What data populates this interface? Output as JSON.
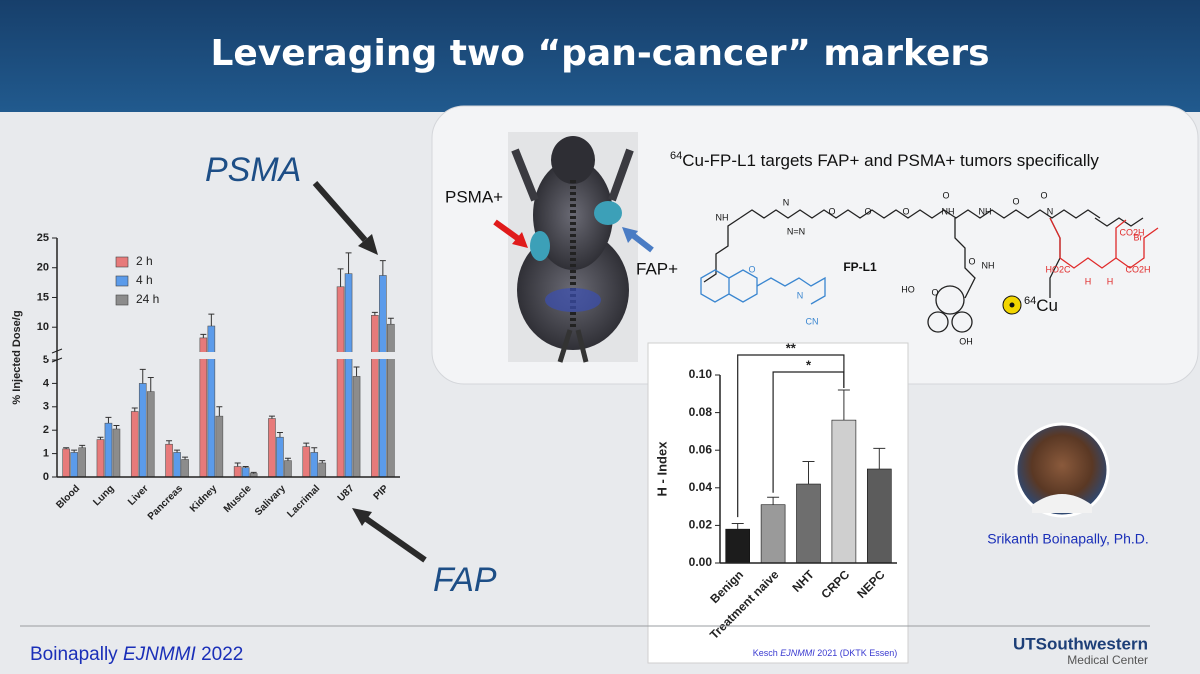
{
  "slide": {
    "title": "Leveraging two “pan-cancer” markers",
    "psma_label": "PSMA",
    "fap_label": "FAP",
    "psma_plus": "PSMA+",
    "fap_plus": "FAP+",
    "panel_caption": {
      "isotope": "64",
      "text": "Cu-FP-L1 targets FAP+ and PSMA+ tumors specifically"
    },
    "compound": "FP-L1",
    "radiolabel": {
      "isotope": "64",
      "element": "Cu"
    },
    "structure_labels": [
      "NH",
      "N",
      "N=N",
      "O",
      "O",
      "O",
      "O",
      "NH",
      "NH",
      "N",
      "O",
      "Br",
      "CO2H",
      "HO2C",
      "H",
      "H",
      "CO2H",
      "O",
      "N",
      "CN",
      "NH",
      "O",
      "HO",
      "OH",
      "O",
      "O"
    ],
    "speaker": "Srikanth Boinapally, Ph.D.",
    "citation": {
      "author": "Boinapally",
      "journal": "EJNMMI",
      "year": "2022"
    },
    "logo": {
      "name": "UTSouthwestern",
      "sub": "Medical Center"
    }
  },
  "chart_data": [
    {
      "type": "bar",
      "ylabel": "% Injected Dose/g",
      "categories": [
        "Blood",
        "Lung",
        "Liver",
        "Pancreas",
        "Kidney",
        "Muscle",
        "Salivary",
        "Lacrimal",
        "U87",
        "PIP"
      ],
      "series": [
        {
          "name": "2 h",
          "color": "#e77a7a",
          "values": [
            1.2,
            1.6,
            2.8,
            1.4,
            8.2,
            0.45,
            2.5,
            1.3,
            16.8,
            12.0
          ],
          "errors": [
            0.05,
            0.1,
            0.15,
            0.15,
            0.6,
            0.15,
            0.1,
            0.15,
            3,
            0.5
          ]
        },
        {
          "name": "4 h",
          "color": "#5b9bea",
          "values": [
            1.05,
            2.3,
            4.0,
            1.05,
            10.2,
            0.4,
            1.7,
            1.05,
            19.0,
            18.7
          ],
          "errors": [
            0.1,
            0.25,
            0.6,
            0.1,
            2,
            0.05,
            0.2,
            0.2,
            3.5,
            2.5
          ]
        },
        {
          "name": "24 h",
          "color": "#8c8c8c",
          "values": [
            1.25,
            2.05,
            3.65,
            0.75,
            2.6,
            0.15,
            0.7,
            0.6,
            4.3,
            10.5
          ],
          "errors": [
            0.1,
            0.15,
            0.6,
            0.1,
            0.4,
            0.05,
            0.1,
            0.1,
            0.4,
            1
          ]
        }
      ],
      "ylim": [
        0,
        25
      ],
      "ybreak": [
        5,
        6
      ],
      "yticks": [
        0,
        1,
        2,
        3,
        4,
        5,
        10,
        15,
        20,
        25
      ]
    },
    {
      "type": "bar",
      "ylabel": "H - Index",
      "categories": [
        "Benign",
        "Treatment naive",
        "NHT",
        "CRPC",
        "NEPC"
      ],
      "values": [
        0.018,
        0.031,
        0.042,
        0.076,
        0.05
      ],
      "errors": [
        0.003,
        0.004,
        0.012,
        0.016,
        0.011
      ],
      "colors": [
        "#1c1c1c",
        "#9a9a9a",
        "#6e6e6e",
        "#cfcfcf",
        "#5c5c5c"
      ],
      "ylim": [
        0,
        0.1
      ],
      "yticks": [
        {
          "value": 0,
          "label": "0.00"
        },
        {
          "value": 0.02,
          "label": "0.02"
        },
        {
          "value": 0.04,
          "label": "0.04"
        },
        {
          "value": 0.06,
          "label": "0.06"
        },
        {
          "value": 0.08,
          "label": "0.08"
        },
        {
          "value": 0.1,
          "label": "0.10"
        }
      ],
      "annotations": [
        "**",
        "*"
      ],
      "source": {
        "author": "Kesch",
        "journal": "EJNMMI",
        "rest": "2021 (DKTK Essen)"
      }
    }
  ]
}
